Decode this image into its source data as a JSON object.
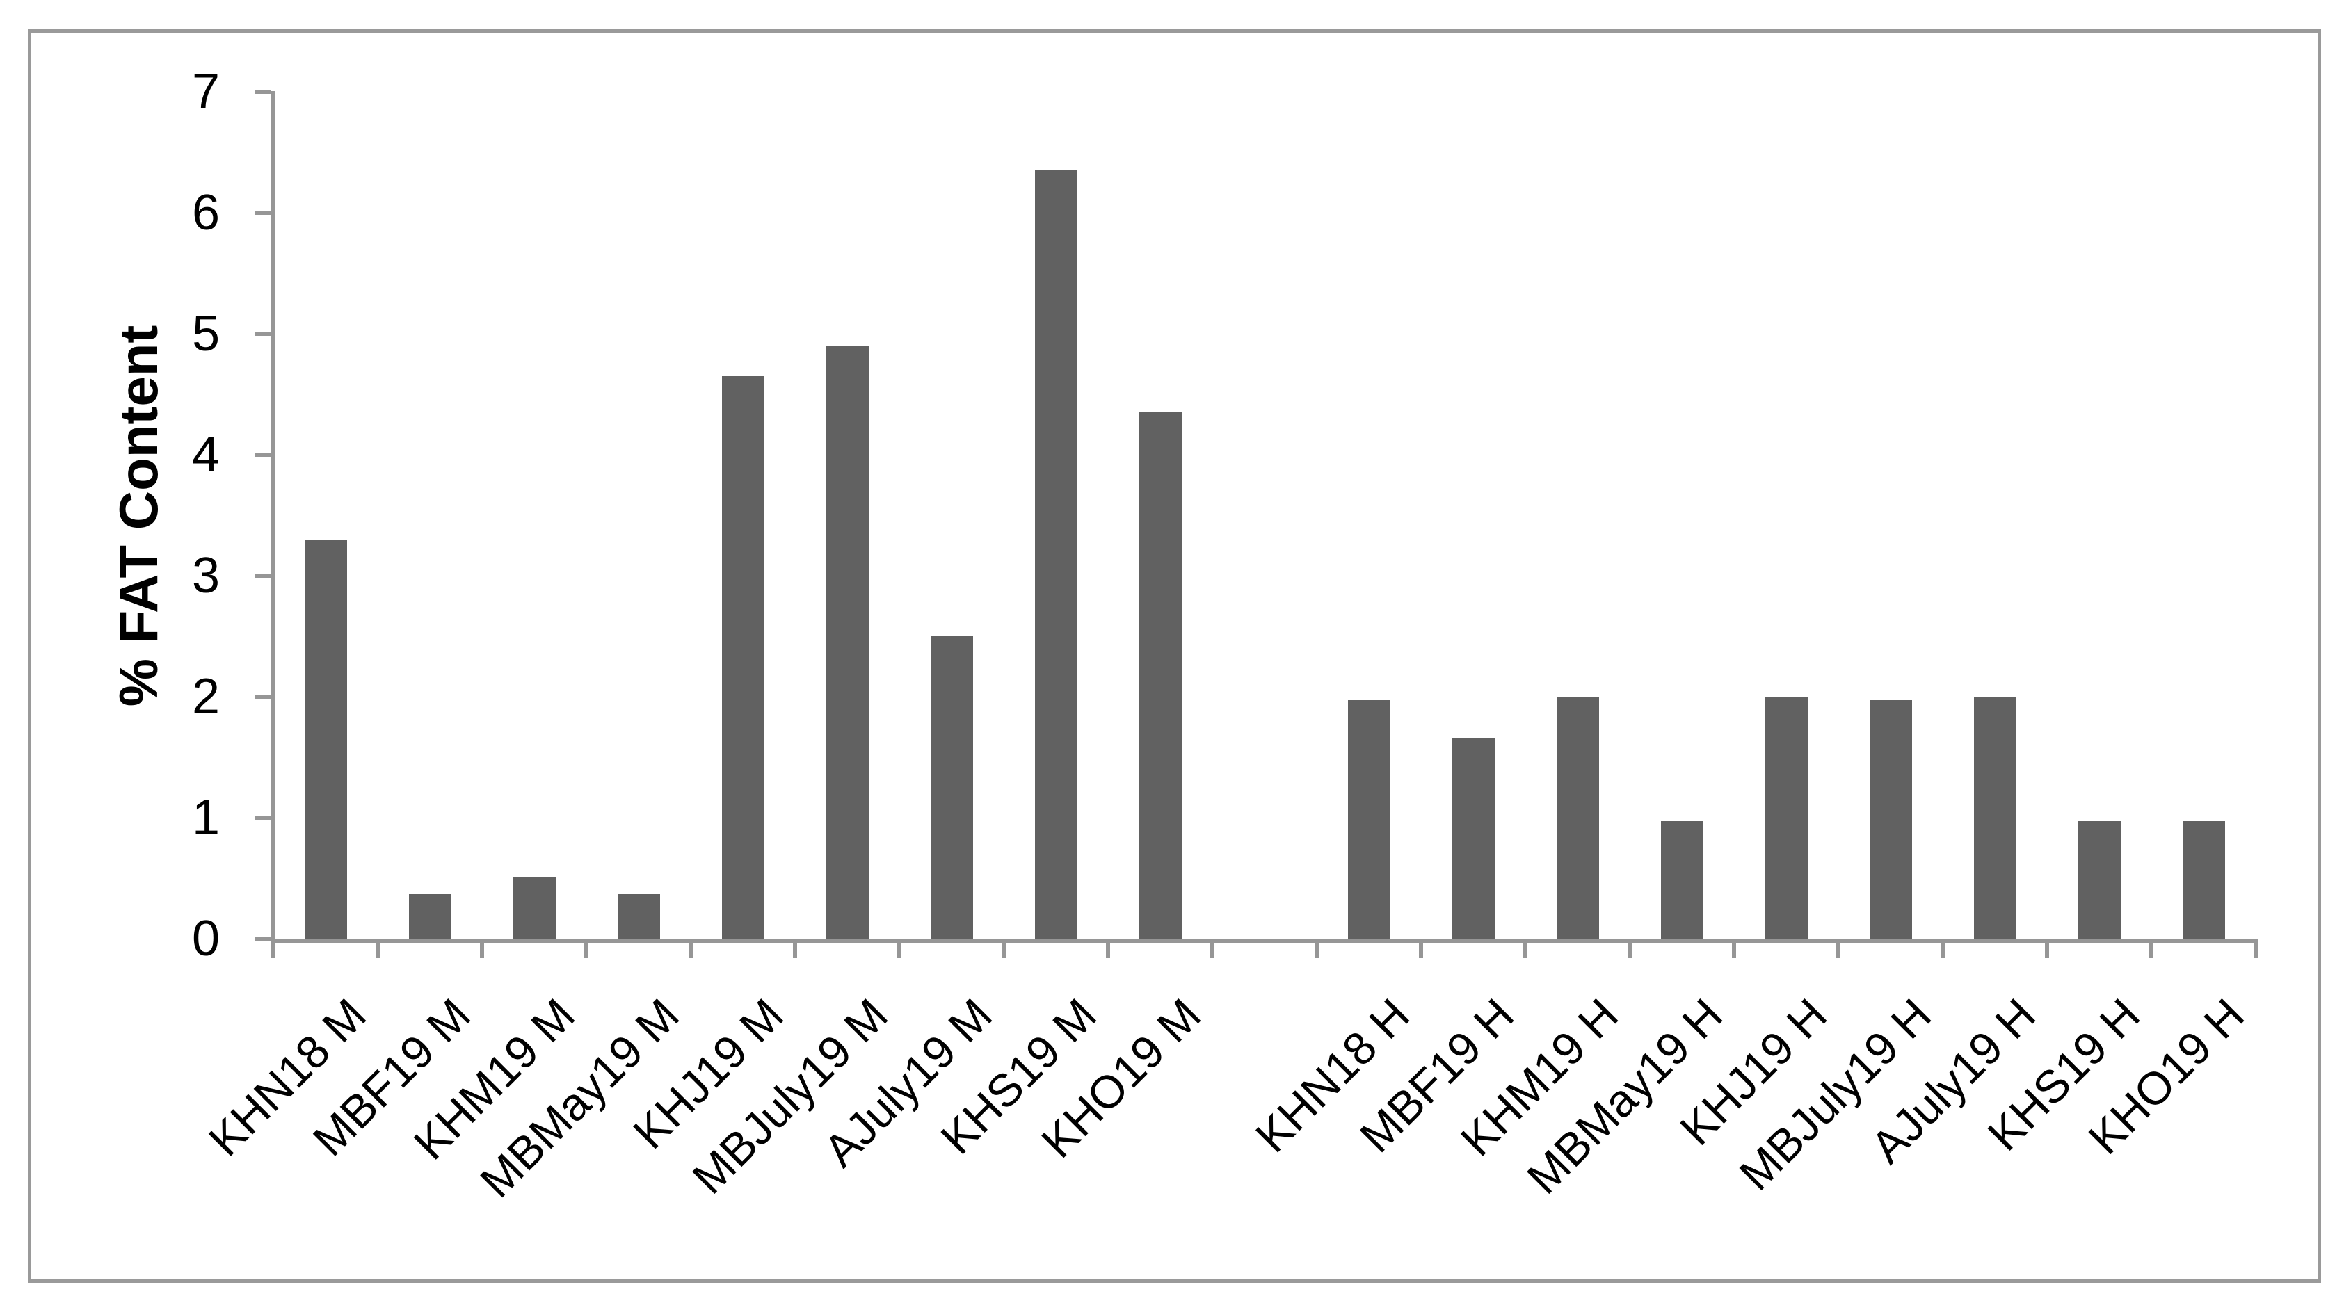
{
  "chart_data": {
    "type": "bar",
    "title": "",
    "xlabel": "",
    "ylabel": "% FAT Content",
    "ylim": [
      0,
      7
    ],
    "yticks": [
      0,
      1,
      2,
      3,
      4,
      5,
      6,
      7
    ],
    "grid": false,
    "legend": false,
    "bar_color": "#616161",
    "axis_color": "#969696",
    "frame_color": "#9a9a9a",
    "text_color": "#000000",
    "gap_after_category_index": 8,
    "categories": [
      "KHN18 M",
      "MBF19 M",
      "KHM19 M",
      "MBMay19 M",
      "KHJ19 M",
      "MBJuly19 M",
      "AJuly19 M",
      "KHS19 M",
      "KHO19 M",
      "KHN18 H",
      "MBF19 H",
      "KHM19 H",
      "MBMay19 H",
      "KHJ19 H",
      "MBJuly19 H",
      "AJuly19 H",
      "KHS19 H",
      "KHO19 H"
    ],
    "values": [
      3.3,
      0.37,
      0.51,
      0.37,
      4.65,
      4.9,
      2.5,
      6.35,
      4.35,
      1.97,
      1.66,
      2.0,
      0.97,
      2.0,
      1.97,
      2.0,
      0.97,
      0.97
    ]
  }
}
